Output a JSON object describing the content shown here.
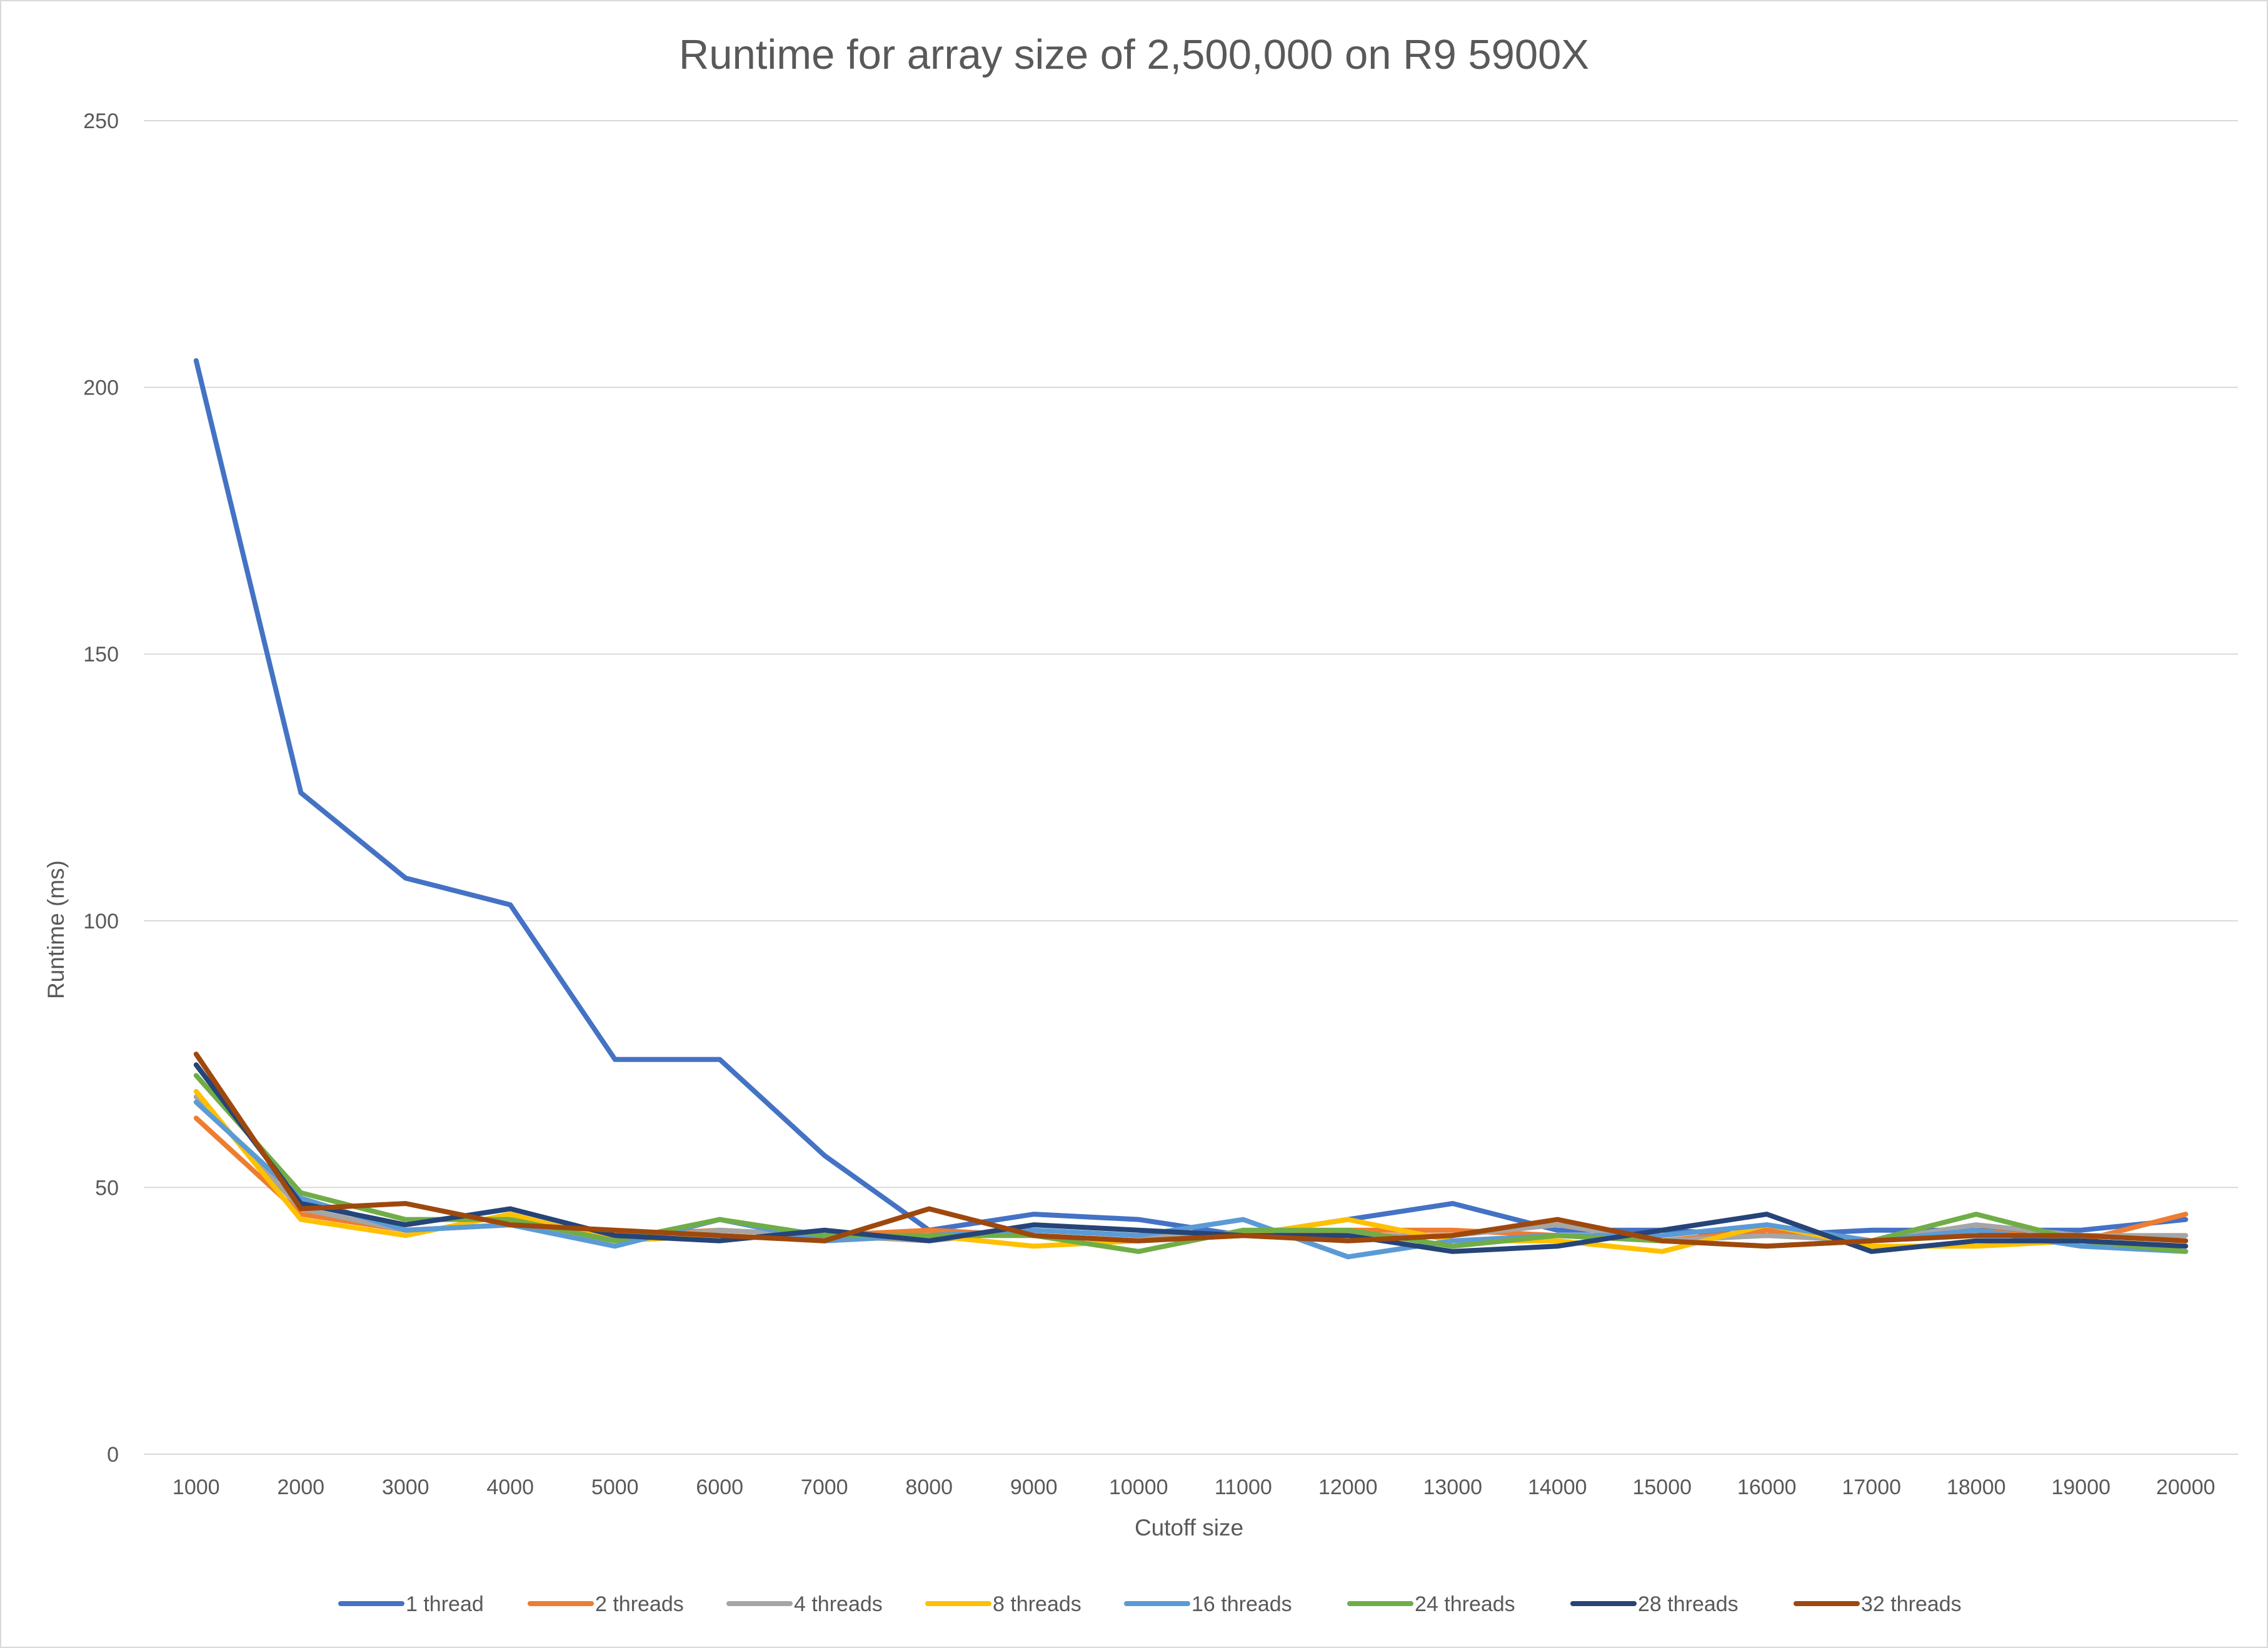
{
  "chart_data": {
    "type": "line",
    "title": "Runtime for array size of 2,500,000 on R9 5900X",
    "xlabel": "Cutoff size",
    "ylabel": "Runtime (ms)",
    "ylim": [
      0,
      250
    ],
    "yticks": [
      "0",
      "50",
      "100",
      "150",
      "200",
      "250"
    ],
    "categories": [
      "1000",
      "2000",
      "3000",
      "4000",
      "5000",
      "6000",
      "7000",
      "8000",
      "9000",
      "10000",
      "11000",
      "12000",
      "13000",
      "14000",
      "15000",
      "16000",
      "17000",
      "18000",
      "19000",
      "20000"
    ],
    "grid": true,
    "legend_position": "bottom",
    "series": [
      {
        "name": "1 thread",
        "color": "#4472C4",
        "values": [
          205,
          124,
          108,
          103,
          74,
          74,
          56,
          42,
          45,
          44,
          41,
          44,
          47,
          42,
          42,
          41,
          42,
          42,
          42,
          44
        ]
      },
      {
        "name": "2 threads",
        "color": "#ED7D31",
        "values": [
          63,
          45,
          42,
          43,
          41,
          42,
          41,
          42,
          41,
          40,
          41,
          42,
          42,
          41,
          40,
          42,
          40,
          42,
          40,
          45
        ]
      },
      {
        "name": "4 threads",
        "color": "#A5A5A5",
        "values": [
          67,
          46,
          42,
          43,
          40,
          42,
          41,
          40,
          42,
          41,
          41,
          41,
          41,
          43,
          40,
          41,
          40,
          43,
          41,
          41
        ]
      },
      {
        "name": "8 threads",
        "color": "#FFC000",
        "values": [
          68,
          44,
          41,
          45,
          40,
          41,
          40,
          41,
          39,
          40,
          41,
          44,
          40,
          40,
          38,
          43,
          39,
          39,
          40,
          39
        ]
      },
      {
        "name": "16 threads",
        "color": "#5B9BD5",
        "values": [
          66,
          48,
          42,
          43,
          39,
          44,
          40,
          41,
          42,
          41,
          44,
          37,
          40,
          41,
          41,
          43,
          40,
          42,
          39,
          38
        ]
      },
      {
        "name": "24 threads",
        "color": "#70AD47",
        "values": [
          71,
          49,
          44,
          44,
          40,
          44,
          41,
          41,
          41,
          38,
          42,
          42,
          39,
          41,
          40,
          39,
          40,
          45,
          40,
          38
        ]
      },
      {
        "name": "28 threads",
        "color": "#264478",
        "values": [
          73,
          47,
          43,
          46,
          41,
          40,
          42,
          40,
          43,
          42,
          41,
          41,
          38,
          39,
          42,
          45,
          38,
          40,
          40,
          39
        ]
      },
      {
        "name": "32 threads",
        "color": "#9E480E",
        "values": [
          75,
          46,
          47,
          43,
          42,
          41,
          40,
          46,
          41,
          40,
          41,
          40,
          41,
          44,
          40,
          39,
          40,
          41,
          41,
          40
        ]
      }
    ]
  }
}
